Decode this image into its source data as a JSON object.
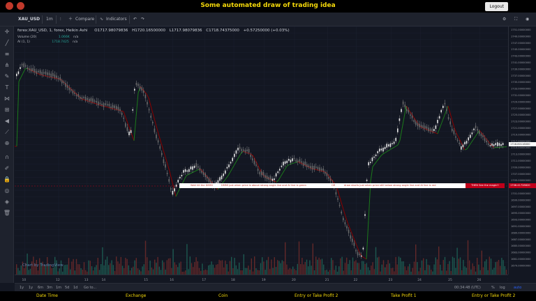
{
  "header": {
    "title": "Some automated draw of trading idea",
    "logout_label": "Logout"
  },
  "toolbar": {
    "symbol": "XAU_USD",
    "interval": "1m",
    "compare_label": "Compare",
    "indicators_label": "Indicators"
  },
  "legend": {
    "symbol_line": "forex:XAU_USD, 1, forex, Heikin Ashi",
    "open": "O1717.98079836",
    "high": "H1720.16500000",
    "low": "L1717.98079836",
    "close": "C1718.74375000",
    "change": "+0.57250000 (+0.03%)",
    "volume_label": "Volume (20)",
    "volume_value": "1.066K",
    "volume_na": "n/a",
    "ai_label": "AI (1, 1)",
    "ai_value": "1718.7425",
    "ai_na": "n/a"
  },
  "banner": {
    "seg1": "Wait till the DMMI",
    "seg2": "DMMI just when price is above strong angle line and AI line is green",
    "seg3": "OR",
    "seg4": "draw shorts just when price still below strong angle line and AI line is red",
    "endtag": "THEN See the magic!!"
  },
  "price_tags": {
    "current_red": "1706.41728620",
    "current_white": "1718.80116000"
  },
  "price_axis": [
    "1751.00000000",
    "1749.00000000",
    "1747.00000000",
    "1745.00000000",
    "1743.00000000",
    "1741.00000000",
    "1739.00000000",
    "1737.00000000",
    "1735.00000000",
    "1733.00000000",
    "1731.00000000",
    "1729.00000000",
    "1727.00000000",
    "1725.00000000",
    "1723.00000000",
    "1721.00000000",
    "1719.00000000",
    "1717.00000000",
    "1715.00000000",
    "1713.00000000",
    "1711.00000000",
    "1709.00000000",
    "1707.00000000",
    "1705.00000000",
    "1703.00000000",
    "1701.00000000",
    "1699.00000000",
    "1697.00000000",
    "1695.00000000",
    "1693.00000000",
    "1691.00000000",
    "1689.00000000",
    "1687.00000000",
    "1685.00000000",
    "1683.00000000",
    "1681.00000000",
    "1679.00000000"
  ],
  "time_axis": [
    "10",
    "12",
    "13",
    "14",
    "15",
    "16",
    "17",
    "18",
    "19",
    "20",
    "21",
    "22",
    "23",
    "24",
    "25",
    "26",
    "27"
  ],
  "range_buttons": [
    "1y",
    "1y",
    "6m",
    "3m",
    "1m",
    "5d",
    "1d",
    "Go to..."
  ],
  "bottom_right": {
    "clock": "00:34:48 (UTC)",
    "percent": "%",
    "log": "log",
    "auto": "auto"
  },
  "watermark": "Chart by TradingView",
  "footer": {
    "items": [
      "Date Time",
      "Exchange",
      "Coin",
      "Entry or Take Profit 2",
      "Take Profit 1",
      "Entry or Take Profit 2"
    ]
  },
  "colors": {
    "accent": "#f5d90a",
    "up": "#26a69a",
    "down": "#ef5350",
    "ai_green": "#1b7a1b",
    "ai_red": "#8b0000"
  }
}
